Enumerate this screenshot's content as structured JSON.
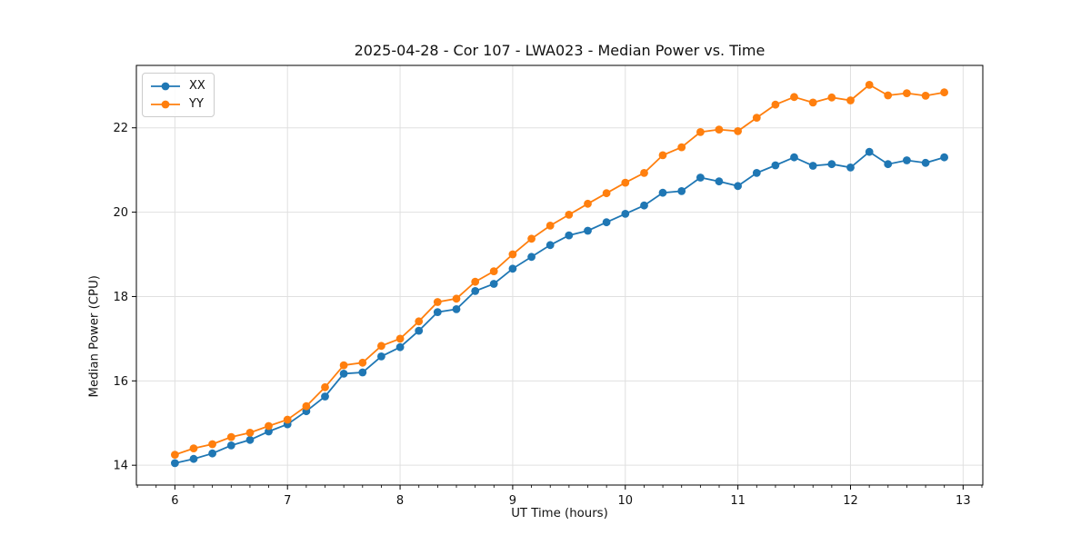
{
  "figure": {
    "background": "#ffffff"
  },
  "chart_data": {
    "type": "line",
    "title": "2025-04-28 - Cor 107 - LWA023 - Median Power vs. Time",
    "xlabel": "UT Time (hours)",
    "ylabel": "Median Power (CPU)",
    "xlim": [
      5.658,
      13.175
    ],
    "ylim": [
      13.53,
      23.48
    ],
    "xticks": [
      6,
      7,
      8,
      9,
      10,
      11,
      12,
      13
    ],
    "yticks": [
      14,
      16,
      18,
      20,
      22
    ],
    "x_minor_step": 0.16667,
    "grid": true,
    "grid_color": "#e0e0e0",
    "legend": {
      "position": "upper-left",
      "entries": [
        "XX",
        "YY"
      ]
    },
    "x": [
      6.0,
      6.167,
      6.333,
      6.5,
      6.667,
      6.833,
      7.0,
      7.167,
      7.333,
      7.5,
      7.667,
      7.833,
      8.0,
      8.167,
      8.333,
      8.5,
      8.667,
      8.833,
      9.0,
      9.167,
      9.333,
      9.5,
      9.667,
      9.833,
      10.0,
      10.167,
      10.333,
      10.5,
      10.667,
      10.833,
      11.0,
      11.167,
      11.333,
      11.5,
      11.667,
      11.833,
      12.0,
      12.167,
      12.333,
      12.5,
      12.667,
      12.833
    ],
    "series": [
      {
        "name": "XX",
        "color": "#1f77b4",
        "values": [
          14.05,
          14.15,
          14.28,
          14.47,
          14.6,
          14.8,
          14.97,
          15.28,
          15.63,
          16.17,
          16.2,
          16.58,
          16.8,
          17.19,
          17.63,
          17.7,
          18.13,
          18.3,
          18.66,
          18.94,
          19.22,
          19.45,
          19.56,
          19.76,
          19.96,
          20.16,
          20.46,
          20.5,
          20.82,
          20.73,
          20.62,
          20.93,
          21.11,
          21.3,
          21.1,
          21.14,
          21.06,
          21.43,
          21.14,
          21.23,
          21.17,
          21.3
        ]
      },
      {
        "name": "YY",
        "color": "#ff7f0e",
        "values": [
          14.25,
          14.4,
          14.5,
          14.67,
          14.77,
          14.93,
          15.08,
          15.4,
          15.85,
          16.37,
          16.43,
          16.83,
          17.0,
          17.41,
          17.87,
          17.95,
          18.35,
          18.6,
          19.0,
          19.37,
          19.68,
          19.94,
          20.2,
          20.45,
          20.7,
          20.93,
          21.35,
          21.54,
          21.9,
          21.96,
          21.92,
          22.24,
          22.55,
          22.73,
          22.6,
          22.72,
          22.65,
          23.02,
          22.77,
          22.82,
          22.76,
          22.84
        ]
      }
    ]
  }
}
